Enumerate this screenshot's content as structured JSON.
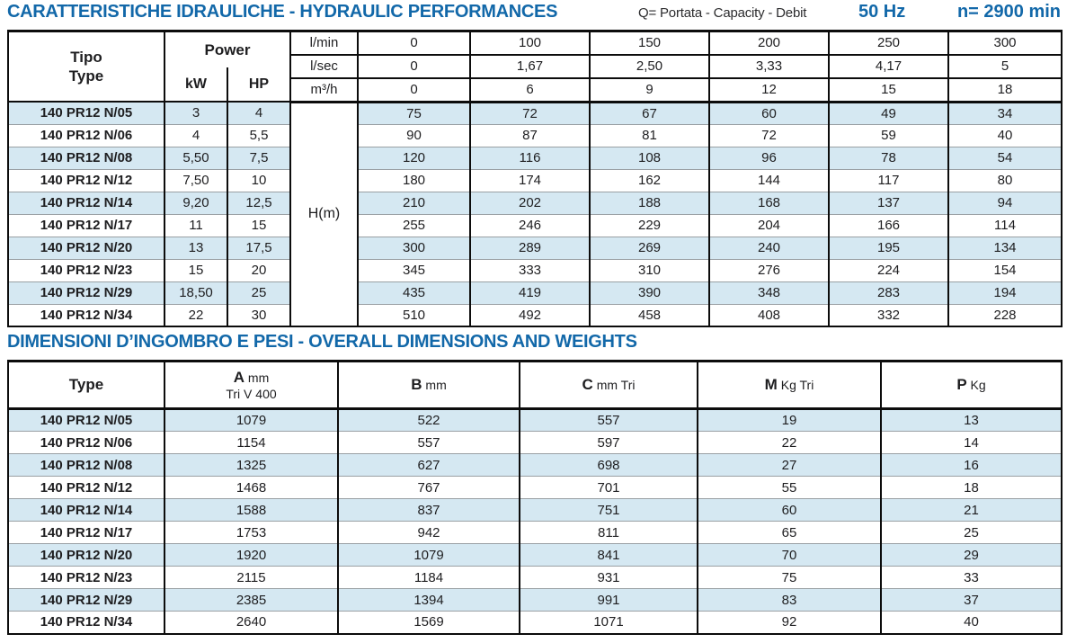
{
  "colors": {
    "accent_blue": "#1268a9",
    "row_highlight": "#d5e8f2",
    "grid_black": "#0c0c0c",
    "row_divider_gray": "#9aa0a4"
  },
  "header": {
    "title": "CARATTERISTICHE IDRAULICHE - HYDRAULIC PERFORMANCES",
    "flow_note": "Q= Portata - Capacity - Debit",
    "frequency": "50 Hz",
    "speed": "n= 2900 min"
  },
  "hydraulic_table": {
    "tipo_label": "Tipo",
    "type_label": "Type",
    "power_label": "Power",
    "kw_label": "kW",
    "hp_label": "HP",
    "head_label": "H(m)",
    "flow_header_rows": [
      {
        "unit": "l/min",
        "values": [
          "0",
          "100",
          "150",
          "200",
          "250",
          "300"
        ]
      },
      {
        "unit": "l/sec",
        "values": [
          "0",
          "1,67",
          "2,50",
          "3,33",
          "4,17",
          "5"
        ]
      },
      {
        "unit": "m³/h",
        "values": [
          "0",
          "6",
          "9",
          "12",
          "15",
          "18"
        ]
      }
    ],
    "rows": [
      {
        "type": "140 PR12 N/05",
        "kw": "3",
        "hp": "4",
        "head": [
          "75",
          "72",
          "67",
          "60",
          "49",
          "34"
        ]
      },
      {
        "type": "140 PR12 N/06",
        "kw": "4",
        "hp": "5,5",
        "head": [
          "90",
          "87",
          "81",
          "72",
          "59",
          "40"
        ]
      },
      {
        "type": "140 PR12 N/08",
        "kw": "5,50",
        "hp": "7,5",
        "head": [
          "120",
          "116",
          "108",
          "96",
          "78",
          "54"
        ]
      },
      {
        "type": "140 PR12 N/12",
        "kw": "7,50",
        "hp": "10",
        "head": [
          "180",
          "174",
          "162",
          "144",
          "117",
          "80"
        ]
      },
      {
        "type": "140 PR12 N/14",
        "kw": "9,20",
        "hp": "12,5",
        "head": [
          "210",
          "202",
          "188",
          "168",
          "137",
          "94"
        ]
      },
      {
        "type": "140 PR12 N/17",
        "kw": "11",
        "hp": "15",
        "head": [
          "255",
          "246",
          "229",
          "204",
          "166",
          "114"
        ]
      },
      {
        "type": "140 PR12 N/20",
        "kw": "13",
        "hp": "17,5",
        "head": [
          "300",
          "289",
          "269",
          "240",
          "195",
          "134"
        ]
      },
      {
        "type": "140 PR12 N/23",
        "kw": "15",
        "hp": "20",
        "head": [
          "345",
          "333",
          "310",
          "276",
          "224",
          "154"
        ]
      },
      {
        "type": "140 PR12 N/29",
        "kw": "18,50",
        "hp": "25",
        "head": [
          "435",
          "419",
          "390",
          "348",
          "283",
          "194"
        ]
      },
      {
        "type": "140 PR12 N/34",
        "kw": "22",
        "hp": "30",
        "head": [
          "510",
          "492",
          "458",
          "408",
          "332",
          "228"
        ]
      }
    ]
  },
  "dimensions_table": {
    "title": "DIMENSIONI D’INGOMBRO E PESI - OVERALL DIMENSIONS AND WEIGHTS",
    "type_label": "Type",
    "columns": [
      {
        "letter": "A",
        "unit": "mm",
        "sub": "Tri V 400"
      },
      {
        "letter": "B",
        "unit": "mm",
        "sub": ""
      },
      {
        "letter": "C",
        "unit": "mm Tri",
        "sub": ""
      },
      {
        "letter": "M",
        "unit": "Kg Tri",
        "sub": ""
      },
      {
        "letter": "P",
        "unit": "Kg",
        "sub": ""
      }
    ],
    "rows": [
      {
        "type": "140 PR12 N/05",
        "values": [
          "1079",
          "522",
          "557",
          "19",
          "13"
        ]
      },
      {
        "type": "140 PR12 N/06",
        "values": [
          "1154",
          "557",
          "597",
          "22",
          "14"
        ]
      },
      {
        "type": "140 PR12 N/08",
        "values": [
          "1325",
          "627",
          "698",
          "27",
          "16"
        ]
      },
      {
        "type": "140 PR12 N/12",
        "values": [
          "1468",
          "767",
          "701",
          "55",
          "18"
        ]
      },
      {
        "type": "140 PR12 N/14",
        "values": [
          "1588",
          "837",
          "751",
          "60",
          "21"
        ]
      },
      {
        "type": "140 PR12 N/17",
        "values": [
          "1753",
          "942",
          "811",
          "65",
          "25"
        ]
      },
      {
        "type": "140 PR12 N/20",
        "values": [
          "1920",
          "1079",
          "841",
          "70",
          "29"
        ]
      },
      {
        "type": "140 PR12 N/23",
        "values": [
          "2115",
          "1184",
          "931",
          "75",
          "33"
        ]
      },
      {
        "type": "140 PR12 N/29",
        "values": [
          "2385",
          "1394",
          "991",
          "83",
          "37"
        ]
      },
      {
        "type": "140 PR12 N/34",
        "values": [
          "2640",
          "1569",
          "1071",
          "92",
          "40"
        ]
      }
    ]
  }
}
